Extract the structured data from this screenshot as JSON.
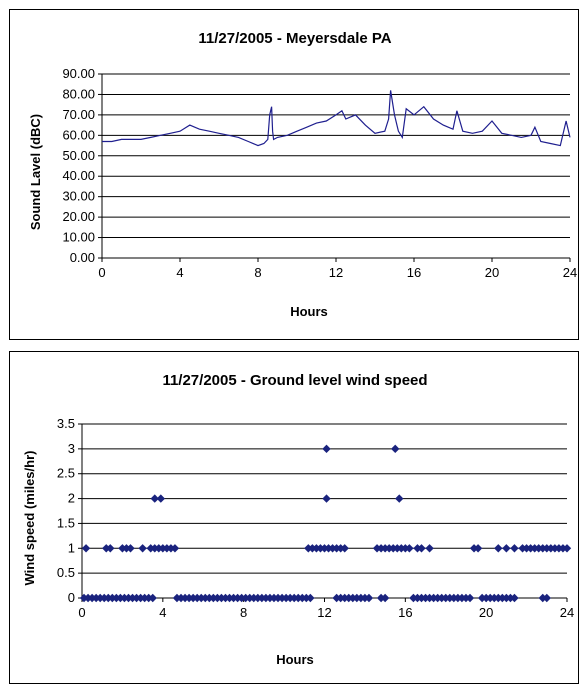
{
  "chart_data": [
    {
      "type": "line",
      "title": "11/27/2005 - Meyersdale PA",
      "xlabel": "Hours",
      "ylabel": "Sound Lavel (dBC)",
      "xlim": [
        0,
        24
      ],
      "ylim": [
        0,
        90
      ],
      "xticks": [
        "0",
        "4",
        "8",
        "12",
        "16",
        "20",
        "24"
      ],
      "yticks": [
        "0.00",
        "10.00",
        "20.00",
        "30.00",
        "40.00",
        "50.00",
        "60.00",
        "70.00",
        "80.00",
        "90.00"
      ],
      "grid": "horizontal",
      "color": "#1f1f8f",
      "series": [
        {
          "x": [
            0,
            0.5,
            1.0,
            1.5,
            2.0,
            2.5,
            3.0,
            3.5,
            4.0,
            4.5,
            5.0,
            5.5,
            6.0,
            6.5,
            7.0,
            7.5,
            8.0,
            8.3,
            8.5,
            8.6,
            8.7,
            8.75,
            8.8,
            9.0,
            9.5,
            10.0,
            10.5,
            11.0,
            11.5,
            12.0,
            12.3,
            12.5,
            13.0,
            13.5,
            14.0,
            14.5,
            14.7,
            14.8,
            15.0,
            15.2,
            15.4,
            15.6,
            16.0,
            16.5,
            17.0,
            17.5,
            18.0,
            18.2,
            18.5,
            19.0,
            19.5,
            20.0,
            20.5,
            21.0,
            21.5,
            22.0,
            22.2,
            22.5,
            23.0,
            23.5,
            23.8,
            24.0
          ],
          "values": [
            57,
            57,
            58,
            58,
            58,
            59,
            60,
            61,
            62,
            65,
            63,
            62,
            61,
            60,
            59,
            57,
            55,
            56,
            58,
            70,
            74,
            62,
            58,
            59,
            60,
            62,
            64,
            66,
            67,
            70,
            72,
            68,
            70,
            65,
            61,
            62,
            68,
            82,
            70,
            62,
            59,
            73,
            70,
            74,
            68,
            65,
            63,
            72,
            62,
            61,
            62,
            67,
            61,
            60,
            59,
            60,
            64,
            57,
            56,
            55,
            67,
            59
          ]
        }
      ]
    },
    {
      "type": "scatter",
      "title": "11/27/2005 - Ground level wind speed",
      "xlabel": "Hours",
      "ylabel": "Wind speed (miles/hr)",
      "xlim": [
        0,
        24
      ],
      "ylim": [
        0,
        3.5
      ],
      "xticks": [
        "0",
        "4",
        "8",
        "12",
        "16",
        "20",
        "24"
      ],
      "yticks": [
        "0",
        "0.5",
        "1",
        "1.5",
        "2",
        "2.5",
        "3",
        "3.5"
      ],
      "grid": "horizontal",
      "marker": "diamond",
      "color": "#1a237e",
      "series": [
        {
          "x": [
            0.1,
            0.3,
            0.5,
            0.7,
            0.9,
            1.1,
            1.3,
            1.5,
            1.7,
            1.9,
            2.1,
            2.3,
            2.5,
            2.7,
            2.9,
            3.1,
            3.3,
            3.5,
            4.7,
            4.9,
            5.1,
            5.3,
            5.5,
            5.7,
            5.9,
            6.1,
            6.3,
            6.5,
            6.7,
            6.9,
            7.1,
            7.3,
            7.5,
            7.7,
            7.9,
            8.1,
            8.3,
            8.5,
            8.7,
            8.9,
            9.1,
            9.3,
            9.5,
            9.7,
            9.9,
            10.1,
            10.3,
            10.5,
            10.7,
            10.9,
            11.1,
            11.3,
            12.6,
            12.8,
            13.0,
            13.2,
            13.4,
            13.6,
            13.8,
            14.0,
            14.2,
            14.8,
            15.0,
            16.4,
            16.6,
            16.8,
            17.0,
            17.2,
            17.4,
            17.6,
            17.8,
            18.0,
            18.2,
            18.4,
            18.6,
            18.8,
            19.0,
            19.2,
            19.8,
            20.0,
            20.2,
            20.4,
            20.6,
            20.8,
            21.0,
            21.2,
            21.4,
            22.8,
            23.0,
            0.2,
            1.2,
            1.4,
            2.0,
            2.2,
            2.4,
            3.0,
            3.4,
            3.6,
            3.8,
            4.0,
            4.2,
            4.4,
            4.6,
            11.2,
            11.4,
            11.6,
            11.8,
            12.0,
            12.2,
            12.4,
            12.6,
            12.8,
            13.0,
            14.6,
            14.8,
            15.0,
            15.2,
            15.4,
            15.6,
            15.8,
            16.0,
            16.2,
            16.6,
            16.8,
            17.2,
            19.4,
            19.6,
            20.6,
            21.0,
            21.4,
            21.8,
            22.0,
            22.2,
            22.4,
            22.6,
            22.8,
            23.0,
            23.2,
            23.4,
            23.6,
            23.8,
            24.0,
            3.6,
            3.9,
            12.1,
            15.7,
            12.1,
            15.5
          ],
          "values": [
            0,
            0,
            0,
            0,
            0,
            0,
            0,
            0,
            0,
            0,
            0,
            0,
            0,
            0,
            0,
            0,
            0,
            0,
            0,
            0,
            0,
            0,
            0,
            0,
            0,
            0,
            0,
            0,
            0,
            0,
            0,
            0,
            0,
            0,
            0,
            0,
            0,
            0,
            0,
            0,
            0,
            0,
            0,
            0,
            0,
            0,
            0,
            0,
            0,
            0,
            0,
            0,
            0,
            0,
            0,
            0,
            0,
            0,
            0,
            0,
            0,
            0,
            0,
            0,
            0,
            0,
            0,
            0,
            0,
            0,
            0,
            0,
            0,
            0,
            0,
            0,
            0,
            0,
            0,
            0,
            0,
            0,
            0,
            0,
            0,
            0,
            0,
            0,
            0,
            1,
            1,
            1,
            1,
            1,
            1,
            1,
            1,
            1,
            1,
            1,
            1,
            1,
            1,
            1,
            1,
            1,
            1,
            1,
            1,
            1,
            1,
            1,
            1,
            1,
            1,
            1,
            1,
            1,
            1,
            1,
            1,
            1,
            1,
            1,
            1,
            1,
            1,
            1,
            1,
            1,
            1,
            1,
            1,
            1,
            1,
            1,
            1,
            1,
            1,
            1,
            1,
            1,
            2,
            2,
            2,
            2,
            3,
            3
          ]
        }
      ]
    }
  ]
}
